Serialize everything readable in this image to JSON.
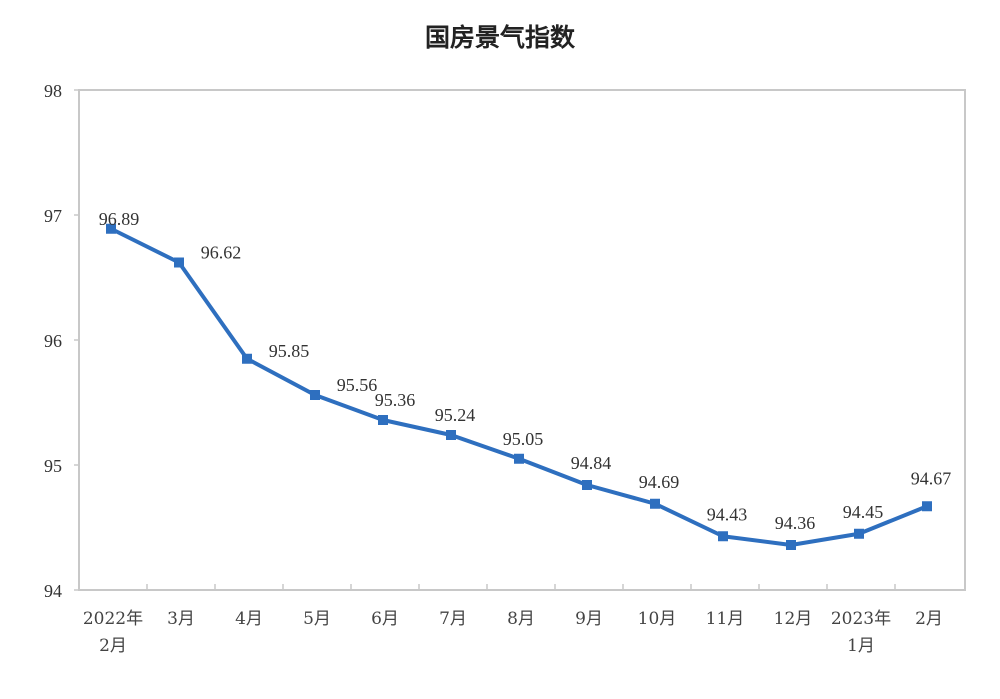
{
  "title": "国房景气指数",
  "colors": {
    "line": "#2e6fbf",
    "axis": "#c8c8c8"
  },
  "chart_data": {
    "type": "line",
    "title": "国房景气指数",
    "xlabel": "",
    "ylabel": "",
    "ylim": [
      94,
      98
    ],
    "yticks": [
      94,
      95,
      96,
      97,
      98
    ],
    "grid": false,
    "legend": null,
    "categories": [
      "2022年 2月",
      "3月",
      "4月",
      "5月",
      "6月",
      "7月",
      "8月",
      "9月",
      "10月",
      "11月",
      "12月",
      "2023年 1月",
      "2月"
    ],
    "series": [
      {
        "name": "国房景气指数",
        "values": [
          96.89,
          96.62,
          95.85,
          95.56,
          95.36,
          95.24,
          95.05,
          94.84,
          94.69,
          94.43,
          94.36,
          94.45,
          94.67
        ]
      }
    ]
  },
  "x_labels": [
    {
      "line1": "2022年",
      "line2": "2月"
    },
    {
      "line1": "3月",
      "line2": ""
    },
    {
      "line1": "4月",
      "line2": ""
    },
    {
      "line1": "5月",
      "line2": ""
    },
    {
      "line1": "6月",
      "line2": ""
    },
    {
      "line1": "7月",
      "line2": ""
    },
    {
      "line1": "8月",
      "line2": ""
    },
    {
      "line1": "9月",
      "line2": ""
    },
    {
      "line1": "10月",
      "line2": ""
    },
    {
      "line1": "11月",
      "line2": ""
    },
    {
      "line1": "12月",
      "line2": ""
    },
    {
      "line1": "2023年",
      "line2": "1月"
    },
    {
      "line1": "2月",
      "line2": ""
    }
  ],
  "data_labels": [
    "96.89",
    "96.62",
    "95.85",
    "95.56",
    "95.36",
    "95.24",
    "95.05",
    "94.84",
    "94.69",
    "94.43",
    "94.36",
    "94.45",
    "94.67"
  ]
}
